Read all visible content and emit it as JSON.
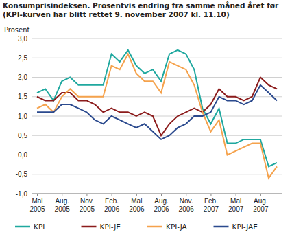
{
  "chart_data": {
    "type": "line",
    "title": "Konsumprisindeksen. Prosentvis endring fra samme måned året før (KPI-kurven har blitt rettet 9. november 2007 kl. 11.10)",
    "y_label": "Prosent",
    "categories": [
      "Mai 2005",
      null,
      null,
      "Aug. 2005",
      null,
      null,
      "Nov. 2005",
      null,
      null,
      "Feb. 2006",
      null,
      null,
      "Mai 2006",
      null,
      null,
      "Aug. 2006",
      null,
      null,
      "Nov. 2006",
      null,
      null,
      "Feb. 2007",
      null,
      null,
      "Mai 2007",
      null,
      null,
      "Aug. 2007",
      null,
      null
    ],
    "series": [
      {
        "name": "KPI",
        "color": "#1fa89f",
        "values": [
          1.6,
          1.7,
          1.4,
          1.9,
          2.0,
          1.8,
          1.8,
          1.8,
          1.8,
          2.6,
          2.4,
          2.7,
          2.3,
          2.1,
          2.2,
          1.9,
          2.6,
          2.7,
          2.6,
          2.2,
          1.2,
          0.8,
          1.2,
          0.3,
          0.3,
          0.4,
          0.4,
          0.4,
          -0.3,
          -0.2
        ]
      },
      {
        "name": "KPI-JE",
        "color": "#8c1c1c",
        "values": [
          1.5,
          1.4,
          1.4,
          1.6,
          1.6,
          1.4,
          1.4,
          1.3,
          1.1,
          1.2,
          1.1,
          1.1,
          1.0,
          1.1,
          1.0,
          0.5,
          0.8,
          1.0,
          1.1,
          1.2,
          1.1,
          1.3,
          1.7,
          1.5,
          1.5,
          1.4,
          1.5,
          2.0,
          1.8,
          1.7
        ]
      },
      {
        "name": "KPI-JA",
        "color": "#f5a24c",
        "values": [
          1.2,
          1.3,
          1.1,
          1.5,
          1.7,
          1.5,
          1.5,
          1.5,
          1.5,
          2.3,
          2.2,
          2.6,
          2.1,
          1.9,
          1.9,
          1.6,
          2.4,
          2.3,
          2.2,
          1.8,
          1.1,
          0.6,
          0.9,
          0.0,
          0.1,
          0.2,
          0.3,
          0.3,
          -0.6,
          -0.3
        ]
      },
      {
        "name": "KPI-JAE",
        "color": "#2b4a8e",
        "values": [
          1.1,
          1.1,
          1.1,
          1.3,
          1.3,
          1.2,
          1.1,
          0.9,
          0.8,
          1.0,
          0.9,
          0.8,
          0.7,
          0.8,
          0.6,
          0.4,
          0.5,
          0.7,
          0.8,
          1.0,
          1.0,
          1.1,
          1.5,
          1.4,
          1.4,
          1.3,
          1.4,
          1.8,
          1.6,
          1.4
        ]
      }
    ],
    "ylim": [
      -1,
      3
    ],
    "yticks": [
      {
        "value": -1,
        "label": "-1,0"
      },
      {
        "value": -0.5,
        "label": "-0,5"
      },
      {
        "value": 0,
        "label": "0,0"
      },
      {
        "value": 0.5,
        "label": "0,5"
      },
      {
        "value": 1,
        "label": "1,0"
      },
      {
        "value": 1.5,
        "label": "1,5"
      },
      {
        "value": 2,
        "label": "2,0"
      },
      {
        "value": 2.5,
        "label": "2,5"
      },
      {
        "value": 3,
        "label": "3,0"
      }
    ],
    "grid": true,
    "legend": "bottom"
  }
}
